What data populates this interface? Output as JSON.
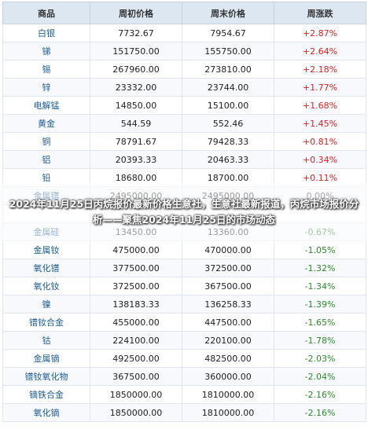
{
  "table": {
    "headers": [
      "商品",
      "周初价格",
      "周末价格",
      "周涨跌"
    ],
    "rows": [
      [
        "白银",
        "7732.67",
        "7954.67",
        "+2.87%"
      ],
      [
        "锑",
        "151750.00",
        "155750.00",
        "+2.64%"
      ],
      [
        "锡",
        "267960.00",
        "273810.00",
        "+2.18%"
      ],
      [
        "锌",
        "23332.00",
        "23744.00",
        "+1.77%"
      ],
      [
        "电解锰",
        "14850.00",
        "15100.00",
        "+1.68%"
      ],
      [
        "黄金",
        "544.59",
        "552.46",
        "+1.45%"
      ],
      [
        "铜",
        "78791.67",
        "79428.33",
        "+0.81%"
      ],
      [
        "铝",
        "20393.33",
        "20463.33",
        "+0.34%"
      ],
      [
        "铅",
        "18680.00",
        "18700.00",
        "+0.11%"
      ],
      [
        "金属镨",
        "2495000.00",
        "2495000.00",
        "0.00%"
      ],
      [
        "",
        "",
        "",
        ""
      ],
      [
        "金属硅",
        "13450.00",
        "13360.00",
        "-0.67%"
      ],
      [
        "金属钕",
        "475000.00",
        "470000.00",
        "-1.05%"
      ],
      [
        "氧化镨",
        "377500.00",
        "372500.00",
        "-1.32%"
      ],
      [
        "氧化钕",
        "372500.00",
        "367500.00",
        "-1.34%"
      ],
      [
        "镍",
        "138183.33",
        "136258.33",
        "-1.39%"
      ],
      [
        "镨钕合金",
        "455000.00",
        "447500.00",
        "-1.65%"
      ],
      [
        "钴",
        "224100.00",
        "220100.00",
        "-1.78%"
      ],
      [
        "金属镝",
        "492500.00",
        "482500.00",
        "-2.03%"
      ],
      [
        "镨钕氧化物",
        "367500.00",
        "360000.00",
        "-2.04%"
      ],
      [
        "镝铁合金",
        "1850000.00",
        "1810000.00",
        "-2.16%"
      ],
      [
        "氧化镝",
        "1850000.00",
        "1810000.00",
        "-2.16%"
      ]
    ]
  },
  "overlay": {
    "headline": "2024年11月25日丙烷报价最新价格生意社，生意社最新报道，丙烷市场报价分析——聚焦2024年11月25日的市场动态"
  }
}
